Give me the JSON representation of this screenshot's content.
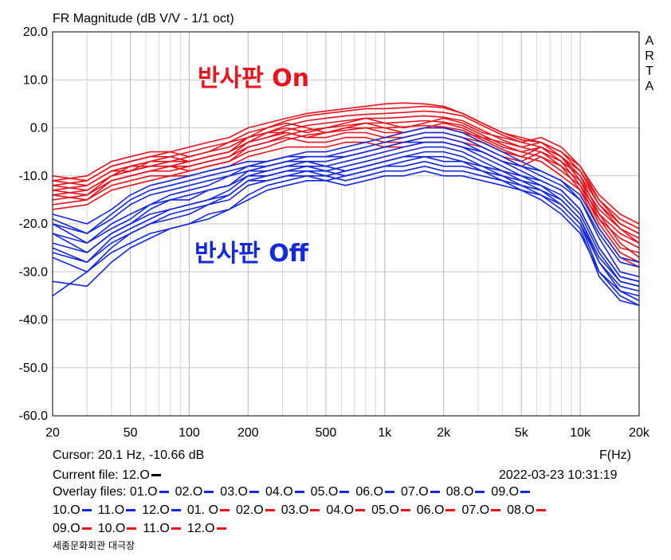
{
  "chart_data": {
    "type": "line",
    "title": "FR Magnitude (dB V/V - 1/1 oct)",
    "xlabel": "F(Hz)",
    "ylabel": "",
    "x_scale": "log",
    "xlim": [
      20,
      20000
    ],
    "ylim": [
      -60,
      20
    ],
    "grid": true,
    "x_ticks": [
      20,
      50,
      100,
      200,
      500,
      1000,
      2000,
      5000,
      10000,
      20000
    ],
    "x_tick_labels": [
      "20",
      "50",
      "100",
      "200",
      "500",
      "1k",
      "2k",
      "5k",
      "10k",
      "20k"
    ],
    "y_ticks": [
      20,
      10,
      0,
      -10,
      -20,
      -30,
      -40,
      -50,
      -60
    ],
    "y_tick_labels": [
      "20.0",
      "10.0",
      "0.0",
      "-10.0",
      "-20.0",
      "-30.0",
      "-40.0",
      "-50.0",
      "-60.0"
    ],
    "annotations": [
      {
        "text": "반사판 On",
        "color": "#e8141e"
      },
      {
        "text": "반사판 Off",
        "color": "#1428dc"
      }
    ],
    "side_label": "ARTA",
    "x": [
      20,
      30,
      40,
      50,
      63,
      80,
      100,
      125,
      160,
      200,
      250,
      315,
      400,
      500,
      630,
      800,
      1000,
      1250,
      1600,
      2000,
      2500,
      3150,
      4000,
      5000,
      6300,
      8000,
      10000,
      12500,
      16000,
      20000
    ],
    "series": [
      {
        "color": "#e8141e",
        "values": [
          -11,
          -10,
          -7,
          -6,
          -5,
          -5,
          -4,
          -3,
          -2,
          0,
          1,
          2,
          3,
          3.5,
          4,
          4.5,
          5,
          5.2,
          5,
          4.5,
          3,
          1,
          -1,
          -2,
          -3,
          -5,
          -8,
          -14,
          -18,
          -20
        ]
      },
      {
        "color": "#e8141e",
        "values": [
          -12,
          -11,
          -8,
          -7,
          -6,
          -6,
          -5,
          -4,
          -3,
          -1,
          0,
          1.5,
          2.5,
          3,
          3.5,
          4,
          4,
          4.2,
          4.5,
          4.2,
          3,
          1,
          -1,
          -2.5,
          -3,
          -6,
          -9,
          -15,
          -19,
          -21
        ]
      },
      {
        "color": "#e8141e",
        "values": [
          -13,
          -12,
          -9,
          -8,
          -7,
          -7,
          -6,
          -5,
          -4,
          -2,
          -1,
          0.5,
          1.5,
          2,
          2.5,
          2.8,
          3,
          3.2,
          3.5,
          3.2,
          2.5,
          0.5,
          -1.5,
          -3,
          -4,
          -7,
          -10,
          -16,
          -20,
          -22
        ]
      },
      {
        "color": "#e8141e",
        "values": [
          -14,
          -13,
          -10,
          -9,
          -8,
          -8,
          -7,
          -6,
          -5,
          -3,
          -2,
          -0.5,
          0.5,
          1,
          1.5,
          2,
          2,
          2.2,
          2.5,
          2.2,
          1.5,
          -0.5,
          -2.5,
          -4,
          -5,
          -8,
          -11,
          -17,
          -21,
          -23
        ]
      },
      {
        "color": "#e8141e",
        "values": [
          -15,
          -14,
          -11,
          -10,
          -9,
          -9,
          -8,
          -7,
          -6,
          -4,
          -3,
          -1.5,
          -0.5,
          0,
          0.5,
          1,
          1,
          1.2,
          1.5,
          1.2,
          0.5,
          -1.5,
          -3.5,
          -5,
          -6,
          -9,
          -12,
          -18,
          -22,
          -24
        ]
      },
      {
        "color": "#e8141e",
        "values": [
          -16,
          -15,
          -12,
          -11,
          -10,
          -10,
          -9,
          -8,
          -7,
          -5,
          -4,
          -2.5,
          -1.5,
          -1,
          -0.5,
          0,
          0,
          0.2,
          0.5,
          0.2,
          -0.5,
          -2.5,
          -4.5,
          -6,
          -7,
          -10,
          -13,
          -19,
          -23,
          -25
        ]
      },
      {
        "color": "#e8141e",
        "values": [
          -10,
          -11,
          -8,
          -7,
          -6,
          -5,
          -6,
          -5,
          -3,
          -2,
          0,
          1,
          0,
          -1,
          0,
          1,
          0,
          -1,
          0,
          1,
          0,
          -2,
          -3,
          -4,
          -3,
          -5,
          -9,
          -16,
          -21,
          -24
        ]
      },
      {
        "color": "#e8141e",
        "values": [
          -12,
          -13,
          -10,
          -8,
          -8,
          -7,
          -7,
          -6,
          -5,
          -3,
          -1,
          -1,
          -2,
          -2,
          -1,
          -1,
          -2,
          -2,
          -1,
          -1,
          -2,
          -3,
          -5,
          -6,
          -4,
          -6,
          -10,
          -18,
          -24,
          -27
        ]
      },
      {
        "color": "#e8141e",
        "values": [
          -14,
          -15,
          -11,
          -10,
          -9,
          -8,
          -9,
          -8,
          -7,
          -4,
          -3,
          -2,
          -3,
          -3,
          -2,
          -2,
          -3,
          -3,
          -2,
          -2,
          -3,
          -4,
          -6,
          -7,
          -5,
          -7,
          -12,
          -20,
          -26,
          -28
        ]
      },
      {
        "color": "#e8141e",
        "values": [
          -17,
          -16,
          -13,
          -12,
          -11,
          -10,
          -10,
          -9,
          -8,
          -6,
          -5,
          -4,
          -4,
          -4,
          -3,
          -3,
          -4,
          -4,
          -3,
          -3,
          -4,
          -5,
          -7,
          -8,
          -6,
          -8,
          -13,
          -21,
          -27,
          -29
        ]
      },
      {
        "color": "#e8141e",
        "values": [
          -11,
          -12,
          -9,
          -9,
          -7,
          -6,
          -7,
          -6,
          -5,
          -2,
          -1,
          0,
          -1,
          0,
          1,
          2,
          1,
          0,
          1,
          2,
          1,
          -1,
          -2,
          -3,
          -2,
          -4,
          -8,
          -15,
          -20,
          -22
        ]
      },
      {
        "color": "#e8141e",
        "values": [
          -13,
          -14,
          -10,
          -9,
          -8,
          -8,
          -8,
          -7,
          -6,
          -3,
          -2,
          -1,
          -2,
          -1,
          0,
          0,
          -1,
          -1,
          0,
          0,
          -1,
          -2,
          -4,
          -5,
          -4,
          -6,
          -11,
          -19,
          -25,
          -26
        ]
      },
      {
        "color": "#1428dc",
        "values": [
          -18,
          -20,
          -17,
          -14,
          -12,
          -11,
          -10,
          -9,
          -8,
          -7,
          -7,
          -6,
          -5,
          -5,
          -4,
          -3,
          -2,
          -1,
          0,
          0,
          -1,
          -3,
          -5,
          -7,
          -9,
          -11,
          -14,
          -21,
          -27,
          -28
        ]
      },
      {
        "color": "#1428dc",
        "values": [
          -20,
          -22,
          -19,
          -16,
          -14,
          -13,
          -12,
          -11,
          -10,
          -9,
          -8,
          -7,
          -6,
          -6,
          -5,
          -4,
          -3,
          -2,
          -1,
          -1,
          -2,
          -4,
          -6,
          -8,
          -10,
          -12,
          -15,
          -23,
          -30,
          -31
        ]
      },
      {
        "color": "#1428dc",
        "values": [
          -22,
          -24,
          -20,
          -18,
          -16,
          -15,
          -14,
          -13,
          -12,
          -10,
          -9,
          -8,
          -7,
          -7,
          -6,
          -5,
          -4,
          -3,
          -2,
          -2,
          -3,
          -5,
          -7,
          -9,
          -11,
          -13,
          -17,
          -25,
          -31,
          -32
        ]
      },
      {
        "color": "#1428dc",
        "values": [
          -24,
          -26,
          -22,
          -20,
          -18,
          -17,
          -16,
          -15,
          -14,
          -11,
          -10,
          -9,
          -8,
          -8,
          -7,
          -6,
          -5,
          -4,
          -3,
          -3,
          -4,
          -6,
          -8,
          -10,
          -12,
          -15,
          -19,
          -28,
          -34,
          -36
        ]
      },
      {
        "color": "#1428dc",
        "values": [
          -26,
          -28,
          -24,
          -22,
          -20,
          -19,
          -18,
          -16,
          -15,
          -12,
          -11,
          -10,
          -9,
          -9,
          -8,
          -7,
          -6,
          -5,
          -4,
          -4,
          -5,
          -7,
          -9,
          -11,
          -13,
          -16,
          -20,
          -30,
          -35,
          -37
        ]
      },
      {
        "color": "#1428dc",
        "values": [
          -35,
          -30,
          -26,
          -24,
          -22,
          -21,
          -20,
          -18,
          -17,
          -14,
          -12,
          -11,
          -10,
          -10,
          -9,
          -8,
          -7,
          -6,
          -5,
          -5,
          -6,
          -8,
          -10,
          -12,
          -14,
          -17,
          -21,
          -31,
          -36,
          -37
        ]
      },
      {
        "color": "#1428dc",
        "values": [
          -20,
          -24,
          -21,
          -19,
          -16,
          -14,
          -13,
          -12,
          -10,
          -8,
          -8,
          -7,
          -7,
          -8,
          -9,
          -8,
          -7,
          -6,
          -6,
          -7,
          -7,
          -8,
          -9,
          -10,
          -11,
          -13,
          -17,
          -25,
          -31,
          -32
        ]
      },
      {
        "color": "#1428dc",
        "values": [
          -22,
          -26,
          -22,
          -20,
          -17,
          -15,
          -15,
          -13,
          -12,
          -9,
          -9,
          -8,
          -8,
          -9,
          -10,
          -9,
          -8,
          -8,
          -7,
          -8,
          -8,
          -9,
          -10,
          -11,
          -12,
          -14,
          -18,
          -26,
          -32,
          -33
        ]
      },
      {
        "color": "#1428dc",
        "values": [
          -25,
          -28,
          -23,
          -21,
          -19,
          -17,
          -16,
          -15,
          -13,
          -10,
          -10,
          -9,
          -9,
          -10,
          -11,
          -10,
          -9,
          -9,
          -8,
          -9,
          -9,
          -10,
          -11,
          -12,
          -13,
          -15,
          -19,
          -27,
          -32,
          -33
        ]
      },
      {
        "color": "#1428dc",
        "values": [
          -27,
          -30,
          -25,
          -22,
          -20,
          -18,
          -17,
          -16,
          -14,
          -11,
          -11,
          -10,
          -10,
          -11,
          -12,
          -11,
          -10,
          -10,
          -9,
          -10,
          -10,
          -11,
          -12,
          -13,
          -14,
          -16,
          -20,
          -28,
          -33,
          -34
        ]
      },
      {
        "color": "#1428dc",
        "values": [
          -19,
          -22,
          -18,
          -15,
          -13,
          -12,
          -11,
          -10,
          -9,
          -8,
          -7,
          -6,
          -6,
          -6,
          -6,
          -5,
          -4,
          -3,
          -3,
          -3,
          -4,
          -5,
          -7,
          -8,
          -9,
          -11,
          -15,
          -22,
          -28,
          -29
        ]
      },
      {
        "color": "#1428dc",
        "values": [
          -32,
          -33,
          -28,
          -25,
          -23,
          -21,
          -20,
          -19,
          -17,
          -15,
          -13,
          -12,
          -11,
          -11,
          -10,
          -9,
          -8,
          -7,
          -6,
          -6,
          -7,
          -9,
          -11,
          -13,
          -15,
          -18,
          -22,
          -30,
          -34,
          -35
        ]
      }
    ]
  },
  "info": {
    "cursor": "Cursor: 20.1 Hz, -10.66 dB",
    "freq_unit": "F(Hz)",
    "current_file_label": "Current file: 12.O",
    "current_file_color": "#000000",
    "timestamp": "2022-03-23   10:31:19",
    "overlay_label": "Overlay files:",
    "overlay_lines": [
      [
        {
          "name": "01.O",
          "color": "#1428dc"
        },
        {
          "name": "02.O",
          "color": "#1428dc"
        },
        {
          "name": "03.O",
          "color": "#1428dc"
        },
        {
          "name": "04.O",
          "color": "#1428dc"
        },
        {
          "name": "05.O",
          "color": "#1428dc"
        },
        {
          "name": "06.O",
          "color": "#1428dc"
        },
        {
          "name": "07.O",
          "color": "#1428dc"
        },
        {
          "name": "08.O",
          "color": "#1428dc"
        },
        {
          "name": "09.O",
          "color": "#1428dc"
        }
      ],
      [
        {
          "name": "10.O",
          "color": "#1428dc"
        },
        {
          "name": "11.O",
          "color": "#1428dc"
        },
        {
          "name": "12.O",
          "color": "#1428dc"
        },
        {
          "name": "01. O",
          "color": "#e8141e"
        },
        {
          "name": "02.O",
          "color": "#e8141e"
        },
        {
          "name": "03.O",
          "color": "#e8141e"
        },
        {
          "name": "04.O",
          "color": "#e8141e"
        },
        {
          "name": "05.O",
          "color": "#e8141e"
        },
        {
          "name": "06.O",
          "color": "#e8141e"
        },
        {
          "name": "07.O",
          "color": "#e8141e"
        },
        {
          "name": "08.O",
          "color": "#e8141e"
        }
      ],
      [
        {
          "name": "09.O",
          "color": "#e8141e"
        },
        {
          "name": "10.O",
          "color": "#e8141e"
        },
        {
          "name": "11.O",
          "color": "#e8141e"
        },
        {
          "name": "12.O",
          "color": "#e8141e"
        }
      ]
    ],
    "footer": "세종문화회관 대극장"
  }
}
